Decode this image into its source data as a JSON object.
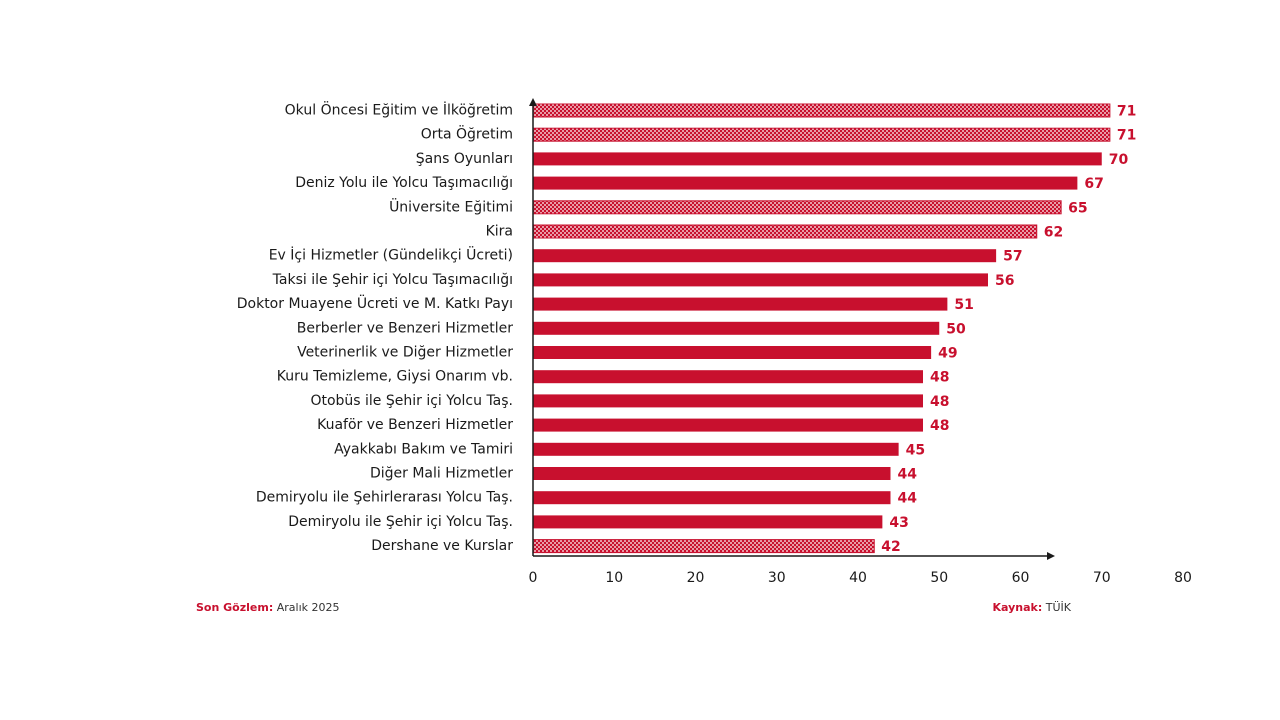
{
  "colors": {
    "bar": "#c8102e",
    "axis": "#1a1a1a",
    "label": "#1a1a1a",
    "value_label": "#c8102e"
  },
  "chart_data": {
    "type": "bar",
    "orientation": "horizontal",
    "categories": [
      "Okul Öncesi Eğitim ve İlköğretim",
      "Orta Öğretim",
      "Şans Oyunları",
      "Deniz Yolu ile Yolcu Taşımacılığı",
      "Üniversite Eğitimi",
      "Kira",
      "Ev İçi Hizmetler (Gündelikçi Ücreti)",
      "Taksi ile Şehir içi Yolcu Taşımacılığı",
      "Doktor Muayene Ücreti ve M. Katkı Payı",
      "Berberler ve Benzeri Hizmetler",
      "Veterinerlik ve Diğer Hizmetler",
      "Kuru Temizleme, Giysi Onarım vb.",
      "Otobüs ile Şehir içi Yolcu Taş.",
      "Kuaför ve Benzeri Hizmetler",
      "Ayakkabı Bakım ve Tamiri",
      "Diğer Mali Hizmetler",
      "Demiryolu ile Şehirlerarası Yolcu Taş.",
      "Demiryolu ile Şehir içi Yolcu Taş.",
      "Dershane ve Kurslar"
    ],
    "values": [
      71,
      71,
      70,
      67,
      65,
      62,
      57,
      56,
      51,
      50,
      49,
      48,
      48,
      48,
      45,
      44,
      44,
      43,
      42
    ],
    "patterns": [
      "dots",
      "dots",
      "solid",
      "solid",
      "dots",
      "dots",
      "solid",
      "solid",
      "solid",
      "solid",
      "solid",
      "solid",
      "solid",
      "solid",
      "solid",
      "solid",
      "solid",
      "solid",
      "dots"
    ],
    "xlim": [
      0,
      80
    ],
    "xticks": [
      0,
      10,
      20,
      30,
      40,
      50,
      60,
      70,
      80
    ],
    "title": "",
    "xlabel": "",
    "ylabel": "",
    "grid": false
  },
  "footer": {
    "left_label": "Son Gözlem:",
    "left_value": "Aralık 2025",
    "right_label": "Kaynak:",
    "right_value": "TÜİK"
  }
}
